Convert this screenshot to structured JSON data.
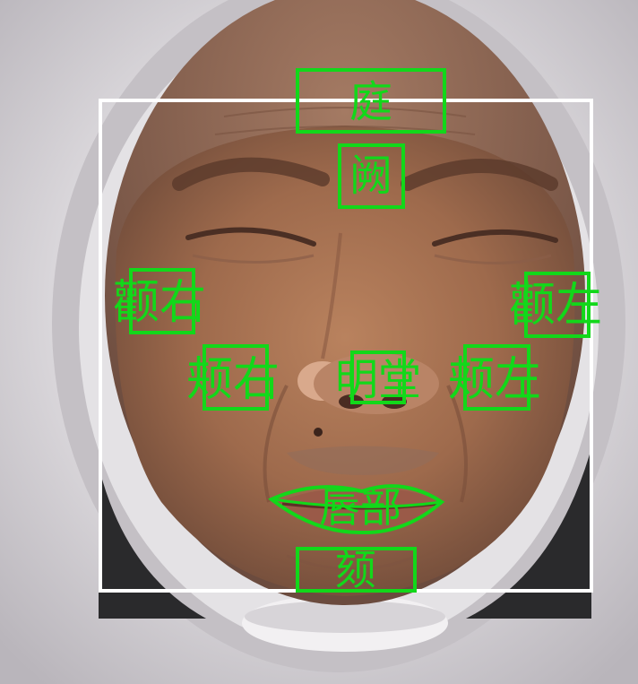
{
  "colors": {
    "face_box": "#ffffff",
    "region_markers": "#12d81a"
  },
  "regions": {
    "ting": "庭",
    "que": "阙",
    "quan_right": "颧右",
    "quan_left": "颧左",
    "jia_right": "颊右",
    "ming_tang": "明堂",
    "jia_left": "颊左",
    "lips": "唇部",
    "chin": "颏"
  }
}
